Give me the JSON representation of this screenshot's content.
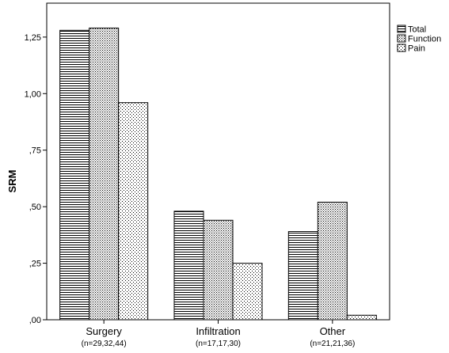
{
  "chart_data": {
    "type": "bar",
    "ylabel": "SRM",
    "xlabel": "",
    "ylim": [
      0,
      1.4
    ],
    "yticks": [
      {
        "value": 0,
        "label": ",00"
      },
      {
        "value": 0.25,
        "label": ",25"
      },
      {
        "value": 0.5,
        "label": ",50"
      },
      {
        "value": 0.75,
        "label": ",75"
      },
      {
        "value": 1.0,
        "label": "1,00"
      },
      {
        "value": 1.25,
        "label": "1,25"
      }
    ],
    "categories": [
      "Surgery",
      "Infiltration",
      "Other"
    ],
    "category_sublabels": [
      "(n=29,32,44)",
      "(n=17,17,30)",
      "(n=21,21,36)"
    ],
    "series": [
      {
        "name": "Total",
        "pattern": "horizontal-lines",
        "values": [
          1.28,
          0.48,
          0.39
        ]
      },
      {
        "name": "Function",
        "pattern": "dots",
        "values": [
          1.29,
          0.44,
          0.52
        ]
      },
      {
        "name": "Pain",
        "pattern": "sparse-dots",
        "values": [
          0.96,
          0.25,
          0.02
        ]
      }
    ],
    "legend_position": "top-right",
    "grid": false
  }
}
